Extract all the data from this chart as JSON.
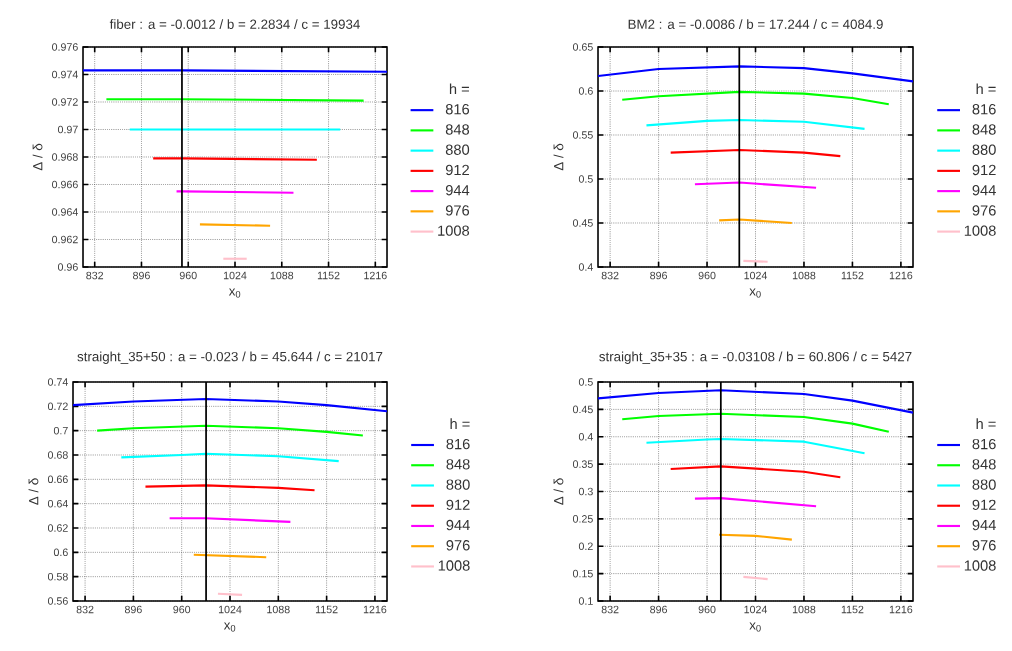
{
  "chart_data": [
    {
      "type": "line",
      "title": "fiber : a = -0.0012 / b = 2.2834 / c = 19934",
      "xlabel": "x$_{0}$",
      "ylabel": "Δ / δ",
      "legend_title": "h =",
      "legend": "right",
      "grid": true,
      "xlim": [
        816,
        1232
      ],
      "xticks": [
        832,
        896,
        960,
        1024,
        1088,
        1152,
        1216
      ],
      "ylim": [
        0.96,
        0.976
      ],
      "yticks": [
        0.96,
        0.962,
        0.964,
        0.966,
        0.968,
        0.97,
        0.972,
        0.974,
        0.976
      ],
      "ref_lines": [
        {
          "axis": "x",
          "value": 951.4
        }
      ],
      "series": [
        {
          "name": "816",
          "color": "#0000ff",
          "x": [
            816,
            952,
            1232
          ],
          "values": [
            0.9743,
            0.9743,
            0.9742
          ]
        },
        {
          "name": "848",
          "color": "#00ff00",
          "x": [
            848,
            952,
            1200
          ],
          "values": [
            0.9722,
            0.9722,
            0.9721
          ]
        },
        {
          "name": "880",
          "color": "#00ffff",
          "x": [
            880,
            952,
            1168
          ],
          "values": [
            0.97,
            0.97,
            0.97
          ]
        },
        {
          "name": "912",
          "color": "#ff0000",
          "x": [
            912,
            952,
            1136
          ],
          "values": [
            0.9679,
            0.9679,
            0.9678
          ]
        },
        {
          "name": "944",
          "color": "#ff00ff",
          "x": [
            944,
            952,
            1104
          ],
          "values": [
            0.9655,
            0.9655,
            0.9654
          ]
        },
        {
          "name": "976",
          "color": "#ffa500",
          "x": [
            976,
            1072
          ],
          "values": [
            0.9631,
            0.963
          ]
        },
        {
          "name": "1008",
          "color": "#ffc0cb",
          "x": [
            1008,
            1040
          ],
          "values": [
            0.9606,
            0.9606
          ]
        }
      ]
    },
    {
      "type": "line",
      "title": "BM2 : a = -0.0086 / b = 17.244 / c = 4084.9",
      "xlabel": "x$_{0}$",
      "ylabel": "Δ / δ",
      "legend_title": "h =",
      "legend": "right",
      "grid": true,
      "xlim": [
        816,
        1232
      ],
      "xticks": [
        832,
        896,
        960,
        1024,
        1088,
        1152,
        1216
      ],
      "ylim": [
        0.4,
        0.65
      ],
      "yticks": [
        0.4,
        0.45,
        0.5,
        0.55,
        0.6,
        0.65
      ],
      "ref_lines": [
        {
          "axis": "x",
          "value": 1002.6
        }
      ],
      "series": [
        {
          "name": "816",
          "color": "#0000ff",
          "x": [
            816,
            896,
            1003,
            1088,
            1152,
            1232
          ],
          "values": [
            0.617,
            0.625,
            0.628,
            0.626,
            0.62,
            0.611
          ]
        },
        {
          "name": "848",
          "color": "#00ff00",
          "x": [
            848,
            896,
            1003,
            1088,
            1152,
            1200
          ],
          "values": [
            0.59,
            0.594,
            0.599,
            0.597,
            0.592,
            0.585
          ]
        },
        {
          "name": "880",
          "color": "#00ffff",
          "x": [
            880,
            960,
            1003,
            1088,
            1168
          ],
          "values": [
            0.561,
            0.566,
            0.567,
            0.565,
            0.557
          ]
        },
        {
          "name": "912",
          "color": "#ff0000",
          "x": [
            912,
            1003,
            1088,
            1136
          ],
          "values": [
            0.53,
            0.533,
            0.53,
            0.526
          ]
        },
        {
          "name": "944",
          "color": "#ff00ff",
          "x": [
            944,
            1003,
            1104
          ],
          "values": [
            0.494,
            0.496,
            0.49
          ]
        },
        {
          "name": "976",
          "color": "#ffa500",
          "x": [
            976,
            1003,
            1072
          ],
          "values": [
            0.453,
            0.454,
            0.45
          ]
        },
        {
          "name": "1008",
          "color": "#ffc0cb",
          "x": [
            1008,
            1040
          ],
          "values": [
            0.407,
            0.406
          ]
        }
      ]
    },
    {
      "type": "line",
      "title": "straight_35+50 : a = -0.023 / b = 45.644 / c = 21017",
      "xlabel": "x$_{0}$",
      "ylabel": "Δ / δ",
      "legend_title": "h =",
      "legend": "right",
      "grid": true,
      "xlim": [
        816,
        1232
      ],
      "xticks": [
        832,
        896,
        960,
        1024,
        1088,
        1152,
        1216
      ],
      "ylim": [
        0.56,
        0.74
      ],
      "yticks": [
        0.56,
        0.58,
        0.6,
        0.62,
        0.64,
        0.66,
        0.68,
        0.7,
        0.72,
        0.74
      ],
      "ref_lines": [
        {
          "axis": "x",
          "value": 992.3
        }
      ],
      "series": [
        {
          "name": "816",
          "color": "#0000ff",
          "x": [
            816,
            896,
            992,
            1088,
            1152,
            1232
          ],
          "values": [
            0.721,
            0.724,
            0.726,
            0.724,
            0.721,
            0.716
          ]
        },
        {
          "name": "848",
          "color": "#00ff00",
          "x": [
            848,
            896,
            992,
            1088,
            1152,
            1200
          ],
          "values": [
            0.7,
            0.702,
            0.704,
            0.702,
            0.699,
            0.696
          ]
        },
        {
          "name": "880",
          "color": "#00ffff",
          "x": [
            880,
            960,
            992,
            1088,
            1168
          ],
          "values": [
            0.678,
            0.68,
            0.681,
            0.679,
            0.675
          ]
        },
        {
          "name": "912",
          "color": "#ff0000",
          "x": [
            912,
            992,
            1088,
            1136
          ],
          "values": [
            0.654,
            0.655,
            0.653,
            0.651
          ]
        },
        {
          "name": "944",
          "color": "#ff00ff",
          "x": [
            944,
            992,
            1104
          ],
          "values": [
            0.628,
            0.628,
            0.625
          ]
        },
        {
          "name": "976",
          "color": "#ffa500",
          "x": [
            976,
            1072
          ],
          "values": [
            0.598,
            0.596
          ]
        },
        {
          "name": "1008",
          "color": "#ffc0cb",
          "x": [
            1008,
            1040
          ],
          "values": [
            0.566,
            0.565
          ]
        }
      ]
    },
    {
      "type": "line",
      "title": "straight_35+35 : a = -0.03108 / b = 60.806 / c = 5427",
      "xlabel": "x$_{0}$",
      "ylabel": "Δ / δ",
      "legend_title": "h =",
      "legend": "right",
      "grid": true,
      "xlim": [
        816,
        1232
      ],
      "xticks": [
        832,
        896,
        960,
        1024,
        1088,
        1152,
        1216
      ],
      "ylim": [
        0.1,
        0.5
      ],
      "yticks": [
        0.1,
        0.15,
        0.2,
        0.25,
        0.3,
        0.35,
        0.4,
        0.45,
        0.5
      ],
      "ref_lines": [
        {
          "axis": "x",
          "value": 978.2
        }
      ],
      "series": [
        {
          "name": "816",
          "color": "#0000ff",
          "x": [
            816,
            896,
            978,
            1088,
            1152,
            1232
          ],
          "values": [
            0.47,
            0.48,
            0.485,
            0.478,
            0.466,
            0.444
          ]
        },
        {
          "name": "848",
          "color": "#00ff00",
          "x": [
            848,
            896,
            978,
            1088,
            1152,
            1200
          ],
          "values": [
            0.432,
            0.438,
            0.442,
            0.436,
            0.424,
            0.409
          ]
        },
        {
          "name": "880",
          "color": "#00ffff",
          "x": [
            880,
            960,
            978,
            1088,
            1168
          ],
          "values": [
            0.389,
            0.395,
            0.396,
            0.391,
            0.37
          ]
        },
        {
          "name": "912",
          "color": "#ff0000",
          "x": [
            912,
            978,
            1088,
            1136
          ],
          "values": [
            0.341,
            0.346,
            0.336,
            0.326
          ]
        },
        {
          "name": "944",
          "color": "#ff00ff",
          "x": [
            944,
            978,
            1104
          ],
          "values": [
            0.287,
            0.288,
            0.273
          ]
        },
        {
          "name": "976",
          "color": "#ffa500",
          "x": [
            976,
            1024,
            1072
          ],
          "values": [
            0.221,
            0.219,
            0.212
          ]
        },
        {
          "name": "1008",
          "color": "#ffc0cb",
          "x": [
            1008,
            1040
          ],
          "values": [
            0.144,
            0.14
          ]
        }
      ]
    }
  ]
}
